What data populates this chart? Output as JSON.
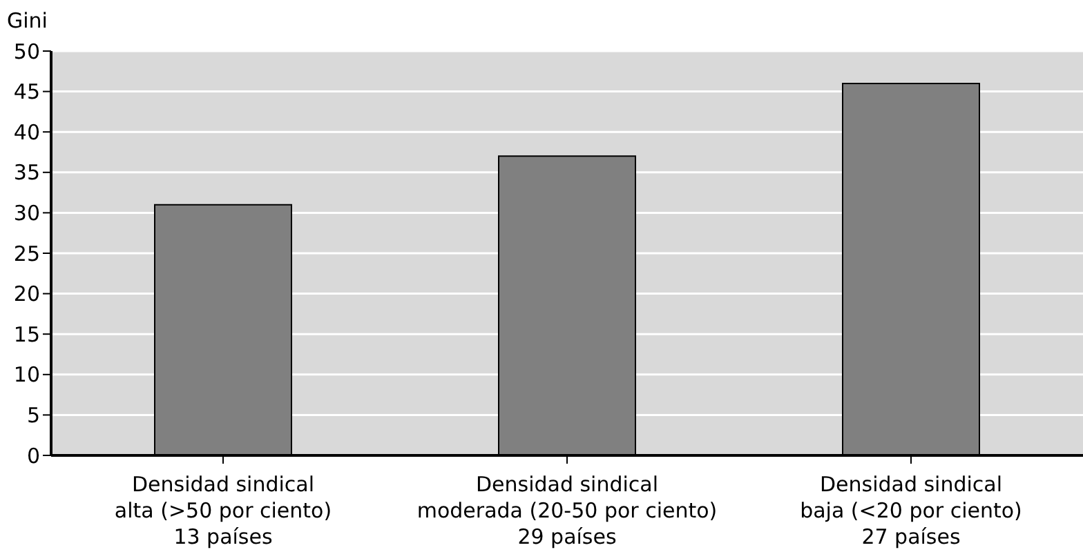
{
  "chart_data": {
    "type": "bar",
    "ylabel": "Gini",
    "categories": [
      "Densidad sindical\nalta (>50 por ciento)\n13 países",
      "Densidad sindical\nmoderada (20-50 por ciento)\n29 países",
      "Densidad sindical\nbaja (<20 por ciento)\n27 países"
    ],
    "values": [
      31,
      37,
      46
    ],
    "color": "#808080",
    "ylim": [
      0,
      50
    ],
    "yticks": [
      0,
      5,
      10,
      15,
      20,
      25,
      30,
      35,
      40,
      45,
      50
    ],
    "grid": "y"
  }
}
